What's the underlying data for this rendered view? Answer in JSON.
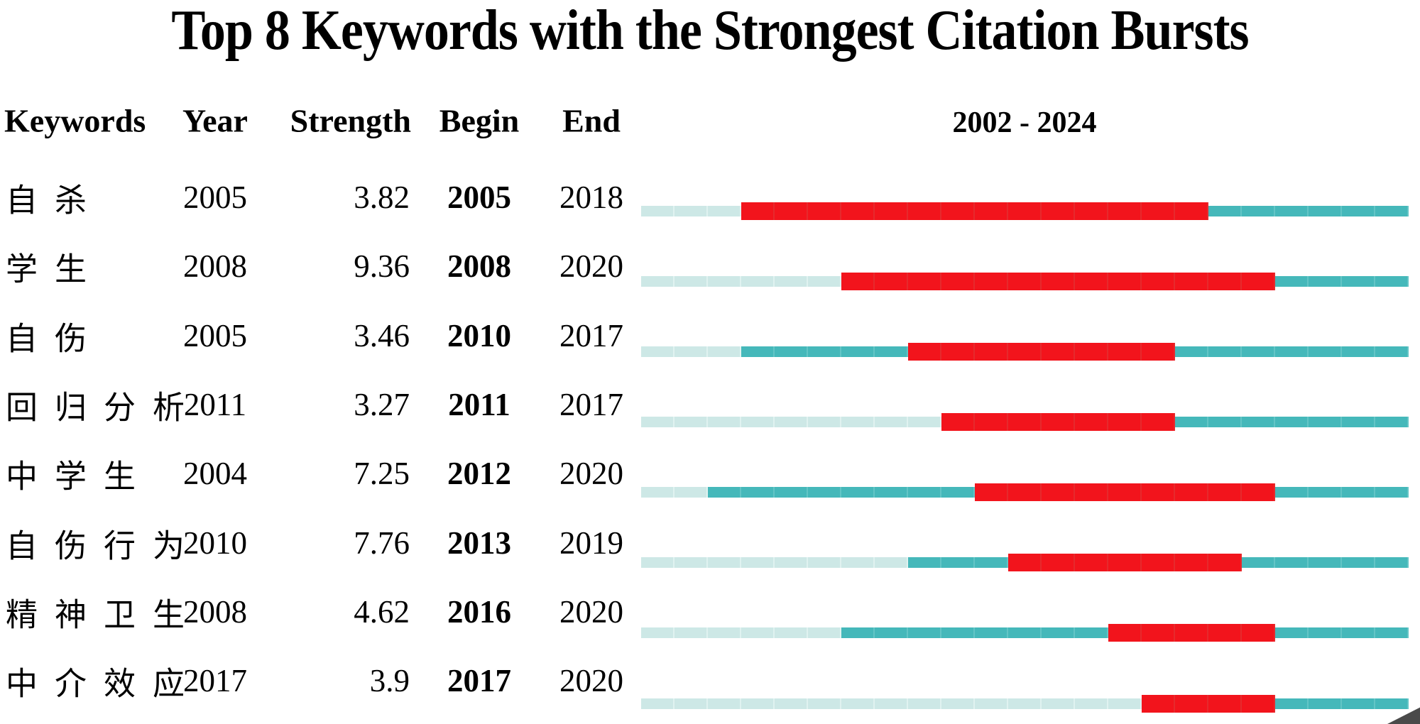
{
  "title": "Top 8 Keywords with the Strongest Citation Bursts",
  "table": {
    "headers": {
      "keywords": "Keywords",
      "year": "Year",
      "strength": "Strength",
      "begin": "Begin",
      "end": "End"
    },
    "period_label": "2002 - 2024"
  },
  "chart_data": {
    "type": "table",
    "title": "Top 8 Keywords with the Strongest Citation Bursts",
    "columns": [
      "Keywords",
      "Year",
      "Strength",
      "Begin",
      "End"
    ],
    "timeline_range": [
      2002,
      2024
    ],
    "legend": {
      "burst_period": "red",
      "active_non_burst": "teal",
      "before_first_appearance": "light-cyan"
    },
    "colors": {
      "burst": "#f2141c",
      "active": "#45b8ba",
      "inactive": "#cde8e6",
      "text": "#000000"
    },
    "rows": [
      {
        "keyword": "自杀",
        "year": 2005,
        "strength": "3.82",
        "begin": 2005,
        "end": 2018
      },
      {
        "keyword": "学生",
        "year": 2008,
        "strength": "9.36",
        "begin": 2008,
        "end": 2020
      },
      {
        "keyword": "自伤",
        "year": 2005,
        "strength": "3.46",
        "begin": 2010,
        "end": 2017
      },
      {
        "keyword": "回归分析",
        "year": 2011,
        "strength": "3.27",
        "begin": 2011,
        "end": 2017
      },
      {
        "keyword": "中学生",
        "year": 2004,
        "strength": "7.25",
        "begin": 2012,
        "end": 2020
      },
      {
        "keyword": "自伤行为",
        "year": 2010,
        "strength": "7.76",
        "begin": 2013,
        "end": 2019
      },
      {
        "keyword": "精神卫生",
        "year": 2008,
        "strength": "4.62",
        "begin": 2016,
        "end": 2020
      },
      {
        "keyword": "中介效应",
        "year": 2017,
        "strength": "3.9",
        "begin": 2017,
        "end": 2020
      }
    ]
  }
}
